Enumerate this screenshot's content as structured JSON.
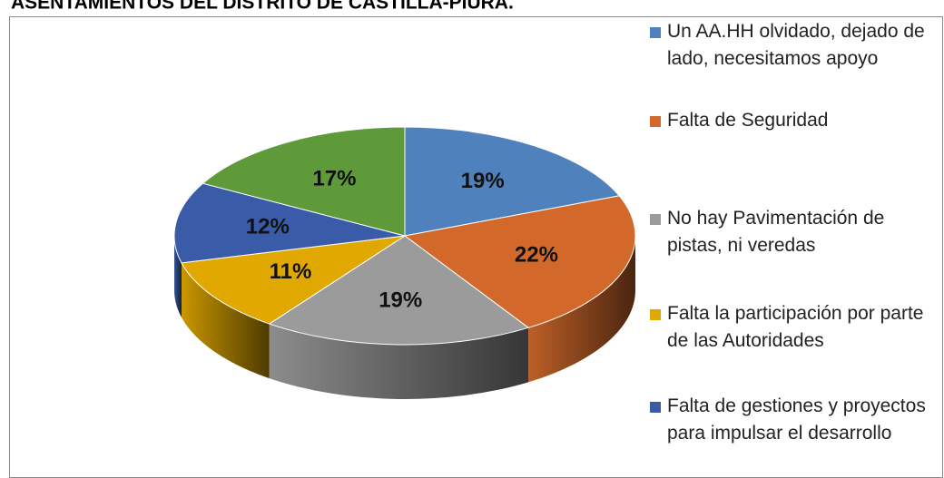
{
  "chart_data": {
    "type": "pie3d",
    "title": "ASENTAMIENTOS DEL DISTRITO DE CASTILLA-PIURA.",
    "categories": [
      "Un AA.HH olvidado, dejado de lado, necesitamos apoyo",
      "Falta de Seguridad",
      "No hay Pavimentación de pistas, ni veredas",
      "Falta la participación por parte de las Autoridades",
      "Falta de gestiones y proyectos para impulsar el desarrollo",
      null
    ],
    "values": [
      19,
      22,
      19,
      11,
      12,
      17
    ],
    "value_labels": [
      "19%",
      "22%",
      "19%",
      "11%",
      "12%",
      "17%"
    ],
    "colors": [
      "#4f81bd",
      "#d2692b",
      "#9b9b9b",
      "#e0a800",
      "#3a5ca8",
      "#5e9a3a"
    ],
    "legend": "right"
  }
}
